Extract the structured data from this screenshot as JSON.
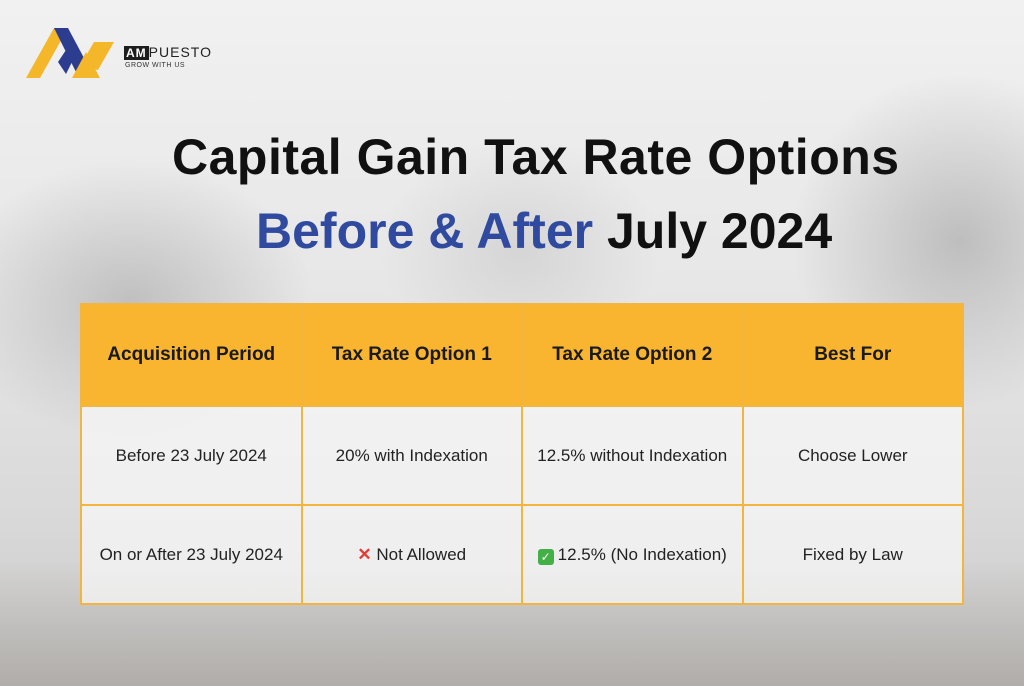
{
  "logo": {
    "brand_prefix": "AM",
    "brand_suffix": "PUESTO",
    "tagline": "GROW WITH US",
    "colors": {
      "gold": "#f5b72a",
      "blue": "#2c3d8f"
    }
  },
  "heading": {
    "line1": "Capital Gain Tax Rate Options",
    "line2_highlight": "Before & After",
    "line2_rest": " July 2024",
    "highlight_color": "#2f4a9e"
  },
  "table": {
    "headers": [
      "Acquisition Period",
      "Tax Rate Option 1",
      "Tax Rate Option 2",
      "Best For"
    ],
    "rows": [
      {
        "period": "Before 23 July 2024",
        "option1": "20% with Indexation",
        "option2": "12.5% without Indexation",
        "best_for": "Choose Lower"
      },
      {
        "period": "On or After 23 July 2024",
        "option1_icon": "cross-mark-icon",
        "option1": "Not Allowed",
        "option2_icon": "check-mark-icon",
        "option2": "12.5% (No Indexation)",
        "best_for": "Fixed by Law"
      }
    ],
    "header_color": "#f9b430"
  }
}
